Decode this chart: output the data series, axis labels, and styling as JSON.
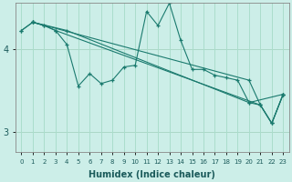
{
  "xlabel": "Humidex (Indice chaleur)",
  "bg_color": "#cceee8",
  "grid_color": "#aaddcc",
  "line_color": "#1a7a6e",
  "xlim": [
    -0.5,
    23.5
  ],
  "ylim": [
    2.75,
    4.55
  ],
  "yticks": [
    3,
    4
  ],
  "xticks": [
    0,
    1,
    2,
    3,
    4,
    5,
    6,
    7,
    8,
    9,
    10,
    11,
    12,
    13,
    14,
    15,
    16,
    17,
    18,
    19,
    20,
    21,
    22,
    23
  ],
  "lines": [
    {
      "x": [
        0,
        1,
        2,
        3,
        4,
        5,
        6,
        7,
        8,
        9,
        10,
        11,
        12,
        13,
        14,
        15,
        16,
        17,
        18,
        19,
        20,
        21,
        22,
        23
      ],
      "y": [
        4.22,
        4.32,
        4.28,
        4.22,
        4.05,
        3.55,
        3.7,
        3.58,
        3.62,
        3.78,
        3.8,
        4.45,
        4.28,
        4.55,
        4.1,
        3.75,
        3.75,
        3.68,
        3.65,
        3.62,
        3.35,
        3.32,
        3.1,
        3.45
      ]
    },
    {
      "x": [
        0,
        1,
        20,
        21,
        22,
        23
      ],
      "y": [
        4.22,
        4.32,
        3.62,
        3.32,
        3.1,
        3.45
      ]
    },
    {
      "x": [
        1,
        2,
        3,
        21,
        22,
        23
      ],
      "y": [
        4.32,
        4.28,
        4.22,
        3.32,
        3.1,
        3.45
      ]
    },
    {
      "x": [
        1,
        4,
        20,
        23
      ],
      "y": [
        4.32,
        4.22,
        3.35,
        3.45
      ]
    }
  ]
}
